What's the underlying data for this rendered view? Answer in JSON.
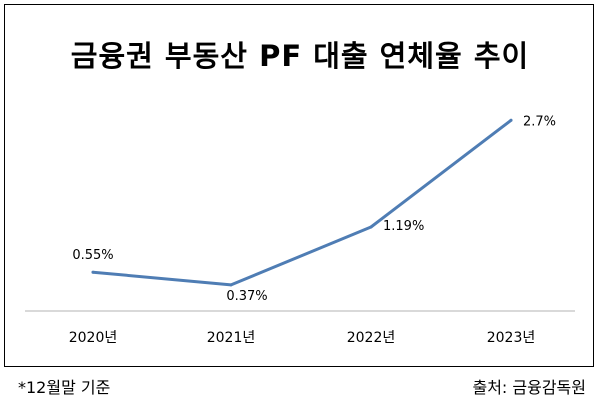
{
  "chart_data": {
    "type": "line",
    "title": "금융권 부동산 PF 대출 연체율 추이",
    "categories": [
      "2020년",
      "2021년",
      "2022년",
      "2023년"
    ],
    "values": [
      0.55,
      0.37,
      1.19,
      2.7
    ],
    "data_labels": [
      "0.55%",
      "0.37%",
      "1.19%",
      "2.7%"
    ],
    "unit": "%",
    "ylim": [
      0,
      3.2
    ],
    "grid": false,
    "legend": "none",
    "line_color": "#4f7db4",
    "axis_color": "#b3b3b3"
  },
  "footnote": "*12월말 기준",
  "source": "출처: 금융감독원"
}
